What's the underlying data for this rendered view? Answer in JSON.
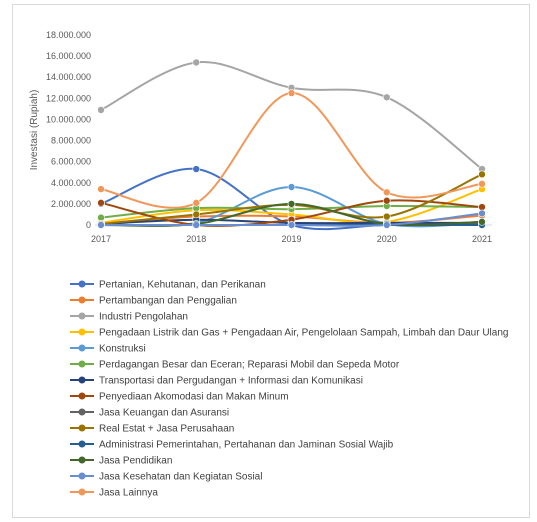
{
  "chart_data": {
    "type": "line",
    "title": "",
    "xlabel": "",
    "ylabel": "Investasi (Rupiah)",
    "x": [
      "2017",
      "2018",
      "2019",
      "2020",
      "2021"
    ],
    "yticks": [
      "0",
      "2.000.000",
      "4.000.000",
      "6.000.000",
      "8.000.000",
      "10.000.000",
      "12.000.000",
      "14.000.000",
      "16.000.000",
      "18.000.000"
    ],
    "ylim": [
      0,
      18000000
    ],
    "grid": false,
    "legend_position": "bottom",
    "smooth": true,
    "series": [
      {
        "name": "Pertanian, Kehutanan, dan Perikanan",
        "color": "#4472C4",
        "values": [
          2000000,
          5300000,
          0,
          0,
          0
        ]
      },
      {
        "name": "Pertambangan dan Penggalian",
        "color": "#ED7D31",
        "values": [
          100000,
          800000,
          800000,
          200000,
          900000
        ]
      },
      {
        "name": "Industri Pengolahan",
        "color": "#A5A5A5",
        "values": [
          10900000,
          15400000,
          13000000,
          12100000,
          5300000
        ]
      },
      {
        "name": "Pengadaan Listrik dan Gas + Pengadaan Air, Pengelolaan Sampah, Limbah dan Daur Ulang",
        "color": "#FFC000",
        "values": [
          200000,
          1400000,
          1000000,
          300000,
          3400000
        ]
      },
      {
        "name": "Konstruksi",
        "color": "#5B9BD5",
        "values": [
          100000,
          200000,
          3600000,
          100000,
          200000
        ]
      },
      {
        "name": "Perdagangan Besar dan Eceran; Reparasi Mobil dan Sepeda Motor",
        "color": "#70AD47",
        "values": [
          700000,
          1600000,
          1500000,
          1800000,
          1700000
        ]
      },
      {
        "name": "Transportasi dan Pergudangan + Informasi dan Komunikasi",
        "color": "#264478",
        "values": [
          100000,
          500000,
          200000,
          200000,
          200000
        ]
      },
      {
        "name": "Penyediaan Akomodasi dan Makan Minum",
        "color": "#9E480E",
        "values": [
          2100000,
          0,
          500000,
          2300000,
          1700000
        ]
      },
      {
        "name": "Jasa Keuangan dan Asuransi",
        "color": "#636363",
        "values": [
          0,
          0,
          0,
          0,
          100000
        ]
      },
      {
        "name": "Real Estat + Jasa Perusahaan",
        "color": "#997300",
        "values": [
          100000,
          1000000,
          1900000,
          800000,
          4800000
        ]
      },
      {
        "name": "Administrasi Pemerintahan, Pertahanan dan Jaminan Sosial Wajib",
        "color": "#255E91",
        "values": [
          0,
          0,
          0,
          0,
          0
        ]
      },
      {
        "name": "Jasa Pendidikan",
        "color": "#43682B",
        "values": [
          0,
          100000,
          2000000,
          100000,
          300000
        ]
      },
      {
        "name": "Jasa Kesehatan dan Kegiatan Sosial",
        "color": "#698ED0",
        "values": [
          0,
          0,
          0,
          0,
          1100000
        ]
      },
      {
        "name": "Jasa Lainnya",
        "color": "#F1975A",
        "values": [
          3400000,
          2100000,
          12500000,
          3100000,
          3900000
        ]
      }
    ]
  }
}
